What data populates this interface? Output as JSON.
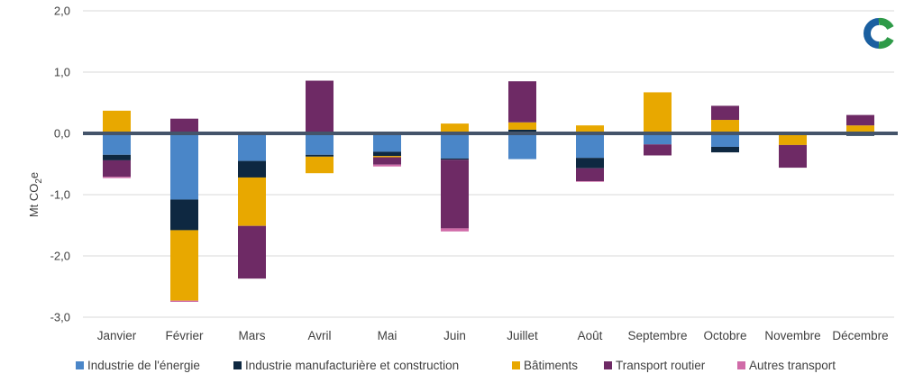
{
  "chart_data": {
    "type": "bar",
    "stacked": true,
    "ylabel_main": "Mt CO",
    "ylabel_sub": "2",
    "ylabel_tail": "e",
    "ylim": [
      -3.0,
      2.0
    ],
    "yticks": [
      2.0,
      1.0,
      0.0,
      -1.0,
      -2.0,
      -3.0
    ],
    "ytick_labels": [
      "2,0",
      "1,0",
      "0,0",
      "-1,0",
      "-2,0",
      "-3,0"
    ],
    "grid": true,
    "legend_position": "bottom",
    "categories": [
      "Janvier",
      "Février",
      "Mars",
      "Avril",
      "Mai",
      "Juin",
      "Juillet",
      "Août",
      "Septembre",
      "Octobre",
      "Novembre",
      "Décembre"
    ],
    "series": [
      {
        "name": "Industrie de l'énergie",
        "color": "#4a86c8",
        "values": [
          -0.35,
          -1.08,
          -0.45,
          -0.35,
          -0.3,
          -0.41,
          -0.42,
          -0.4,
          -0.18,
          -0.22,
          0.0,
          0.0
        ]
      },
      {
        "name": "Industrie manufacturière et construction",
        "color": "#0e2841",
        "values": [
          -0.09,
          -0.5,
          -0.27,
          -0.03,
          -0.07,
          -0.02,
          0.06,
          -0.17,
          0.0,
          -0.09,
          0.0,
          -0.04
        ]
      },
      {
        "name": "Bâtiments",
        "color": "#e8a800",
        "values": [
          0.37,
          -1.15,
          -0.79,
          -0.27,
          -0.02,
          0.16,
          0.12,
          0.13,
          0.67,
          0.22,
          -0.19,
          0.13
        ]
      },
      {
        "name": "Transport routier",
        "color": "#6e2a65",
        "values": [
          -0.27,
          0.24,
          -0.86,
          0.86,
          -0.12,
          -1.12,
          0.67,
          -0.21,
          -0.18,
          0.23,
          -0.37,
          0.17
        ]
      },
      {
        "name": "Autres transport",
        "color": "#d06ba8",
        "values": [
          -0.02,
          -0.02,
          0.0,
          0.0,
          -0.03,
          -0.05,
          0.0,
          -0.01,
          0.0,
          0.0,
          0.0,
          0.0
        ]
      }
    ]
  },
  "logo": {
    "name": "logo-icon",
    "colors": [
      "#1a5fa0",
      "#2e9a48"
    ]
  }
}
